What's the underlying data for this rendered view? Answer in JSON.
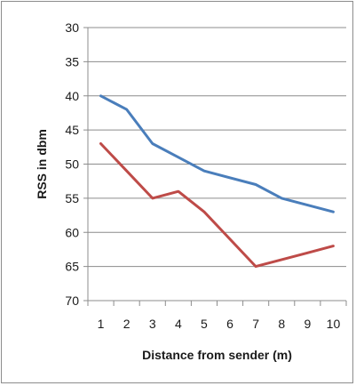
{
  "chart_data": {
    "type": "line",
    "xlabel": "Distance from sender (m)",
    "ylabel": "RSS in dbm",
    "categories": [
      "1",
      "2",
      "3",
      "4",
      "5",
      "6",
      "7",
      "8",
      "9",
      "10"
    ],
    "y_ticks": [
      "30",
      "35",
      "40",
      "45",
      "50",
      "55",
      "60",
      "65",
      "70"
    ],
    "ylim": [
      30,
      70
    ],
    "y_inverted": true,
    "grid": "horizontal",
    "legend": "none",
    "series": [
      {
        "color": "#4a7ebb",
        "x": [
          1,
          2,
          3,
          4,
          5,
          7,
          8,
          9,
          10
        ],
        "values": [
          40,
          42,
          47,
          49,
          51,
          53,
          55,
          56,
          57
        ]
      },
      {
        "color": "#be4b48",
        "x": [
          1,
          2,
          3,
          4,
          5,
          7,
          8,
          9,
          10
        ],
        "values": [
          47,
          51,
          55,
          54,
          57,
          65,
          64,
          63,
          62
        ]
      }
    ]
  }
}
